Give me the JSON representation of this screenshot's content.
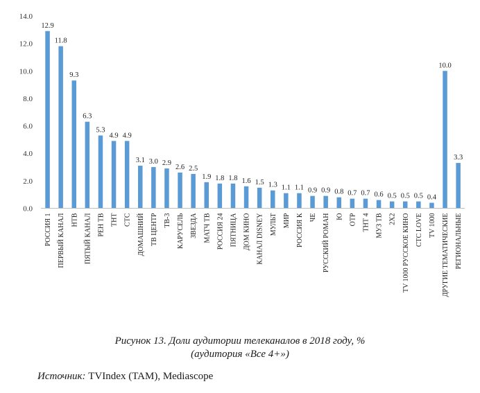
{
  "chart_data": {
    "type": "bar",
    "categories": [
      "РОССИЯ 1",
      "ПЕРВЫЙ КАНАЛ",
      "НТВ",
      "ПЯТЫЙ КАНАЛ",
      "РЕН ТВ",
      "ТНТ",
      "СТС",
      "ДОМАШНИЙ",
      "ТВ ЦЕНТР",
      "ТВ-3",
      "КАРУСЕЛЬ",
      "ЗВЕЗДА",
      "МАТЧ ТВ",
      "РОССИЯ 24",
      "ПЯТНИЦА",
      "ДОМ КИНО",
      "КАНАЛ DISNEY",
      "МУЛЬТ",
      "МИР",
      "РОССИЯ К",
      "ЧЕ",
      "РУССКИЙ РОМАН",
      "Ю",
      "ОТР",
      "ТНТ 4",
      "МУЗ ТВ",
      "2X2",
      "TV 1000 РУССКОЕ КИНО",
      "СТС LOVE",
      "TV 1000",
      "ДРУГИЕ ТЕМАТИЧЕСКИЕ",
      "РЕГИОНАЛЬНЫЕ"
    ],
    "values": [
      12.9,
      11.8,
      9.3,
      6.3,
      5.3,
      4.9,
      4.9,
      3.1,
      3.0,
      2.9,
      2.6,
      2.5,
      1.9,
      1.8,
      1.8,
      1.6,
      1.5,
      1.3,
      1.1,
      1.1,
      0.9,
      0.9,
      0.8,
      0.7,
      0.7,
      0.6,
      0.5,
      0.5,
      0.5,
      0.4,
      10.0,
      3.3
    ],
    "data_labels": [
      "12.9",
      "11.8",
      "9.3",
      "6.3",
      "5.3",
      "4.9",
      "4.9",
      "3.1",
      "3.0",
      "2.9",
      "2.6",
      "2.5",
      "1.9",
      "1.8",
      "1.8",
      "1.6",
      "1.5",
      "1.3",
      "1.1",
      "1.1",
      "0.9",
      "0.9",
      "0.8",
      "0.7",
      "0.7",
      "0.6",
      "0.5",
      "0.5",
      "0.5",
      "0.4",
      "10.0",
      "3.3"
    ],
    "yticks": [
      "0.0",
      "2.0",
      "4.0",
      "6.0",
      "8.0",
      "10.0",
      "12.0",
      "14.0"
    ],
    "ylim": [
      0,
      14
    ],
    "grid": false,
    "legend": "none",
    "bar_color": "#5b9bd5",
    "title": "",
    "xlabel": "",
    "ylabel": ""
  },
  "caption": {
    "line1": "Рисунок 13. Доли аудитории телеканалов в 2018 году, %",
    "line2": "(аудитория «Все 4+»)"
  },
  "source": {
    "label": "Источник:",
    "text": " TVIndex (TAM), Mediascope"
  }
}
